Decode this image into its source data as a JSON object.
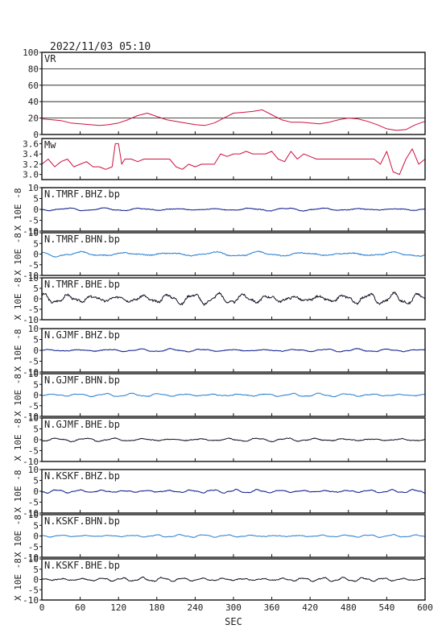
{
  "header": {
    "timestamp": "2022/11/03 05:10"
  },
  "chart_data": {
    "type": "line",
    "xlabel": "SEC",
    "xlim": [
      0,
      600
    ],
    "xticks": [
      0,
      60,
      120,
      180,
      240,
      300,
      360,
      420,
      480,
      540,
      600
    ],
    "panels": [
      {
        "id": "vr",
        "label": "VR",
        "color": "#d01040",
        "ylim": [
          0,
          100
        ],
        "yticks": [
          0,
          20,
          40,
          60,
          80,
          100
        ],
        "hgrid": true,
        "ylabel": "",
        "series": {
          "x": [
            0,
            15,
            30,
            45,
            60,
            75,
            90,
            105,
            120,
            135,
            150,
            165,
            180,
            195,
            210,
            225,
            240,
            255,
            270,
            285,
            300,
            315,
            330,
            345,
            360,
            375,
            390,
            405,
            420,
            435,
            450,
            465,
            480,
            495,
            510,
            525,
            540,
            555,
            570,
            585,
            600
          ],
          "y": [
            19,
            18,
            17,
            14,
            13,
            12,
            11,
            12,
            14,
            18,
            23,
            26,
            22,
            18,
            16,
            14,
            12,
            11,
            14,
            20,
            26,
            27,
            28,
            30,
            24,
            18,
            15,
            15,
            14,
            13,
            15,
            18,
            20,
            19,
            16,
            12,
            7,
            5,
            6,
            12,
            16
          ]
        }
      },
      {
        "id": "mw",
        "label": "Mw",
        "color": "#d01040",
        "ylim": [
          2.9,
          3.7
        ],
        "yticks": [
          3.0,
          3.2,
          3.4,
          3.6
        ],
        "hgrid": false,
        "ylabel": "",
        "series": {
          "x": [
            0,
            10,
            20,
            30,
            40,
            50,
            60,
            70,
            80,
            90,
            100,
            110,
            115,
            120,
            125,
            130,
            140,
            150,
            160,
            170,
            180,
            190,
            200,
            210,
            220,
            230,
            240,
            250,
            260,
            270,
            280,
            290,
            300,
            310,
            320,
            330,
            340,
            350,
            360,
            370,
            380,
            390,
            400,
            410,
            420,
            430,
            440,
            450,
            460,
            470,
            480,
            490,
            500,
            510,
            520,
            530,
            540,
            550,
            560,
            570,
            580,
            590,
            600
          ],
          "y": [
            3.2,
            3.3,
            3.15,
            3.25,
            3.3,
            3.15,
            3.2,
            3.25,
            3.15,
            3.15,
            3.1,
            3.15,
            3.6,
            3.6,
            3.2,
            3.3,
            3.3,
            3.25,
            3.3,
            3.3,
            3.3,
            3.3,
            3.3,
            3.15,
            3.1,
            3.2,
            3.15,
            3.2,
            3.2,
            3.2,
            3.4,
            3.35,
            3.4,
            3.4,
            3.45,
            3.4,
            3.4,
            3.4,
            3.45,
            3.3,
            3.25,
            3.45,
            3.3,
            3.4,
            3.35,
            3.3,
            3.3,
            3.3,
            3.3,
            3.3,
            3.3,
            3.3,
            3.3,
            3.3,
            3.3,
            3.2,
            3.45,
            3.05,
            3.0,
            3.3,
            3.5,
            3.2,
            3.3
          ]
        }
      },
      {
        "id": "tmrf-bhz",
        "label": "N.TMRF.BHZ.bp",
        "color": "#0a1a8c",
        "ylim": [
          -10,
          10
        ],
        "yticks": [
          -10,
          -5,
          0,
          5,
          10
        ],
        "ylabel": "X 10E -8",
        "amp": 0.8,
        "freq": 0.11,
        "seed": 1
      },
      {
        "id": "tmrf-bhn",
        "label": "N.TMRF.BHN.bp",
        "color": "#2a7fd0",
        "ylim": [
          -10,
          10
        ],
        "yticks": [
          -10,
          -5,
          0,
          5,
          10
        ],
        "ylabel": "X 10E -8",
        "amp": 1.3,
        "freq": 0.09,
        "seed": 2
      },
      {
        "id": "tmrf-bhe",
        "label": "N.TMRF.BHE.bp",
        "color": "#111122",
        "ylim": [
          -10,
          10
        ],
        "yticks": [
          -10,
          -5,
          0,
          5,
          10
        ],
        "ylabel": "X 10E -8",
        "amp": 3.0,
        "freq": 0.16,
        "seed": 3
      },
      {
        "id": "gjmf-bhz",
        "label": "N.GJMF.BHZ.bp",
        "color": "#0a1a8c",
        "ylim": [
          -10,
          10
        ],
        "yticks": [
          -10,
          -5,
          0,
          5,
          10
        ],
        "ylabel": "X 10E -8",
        "amp": 0.8,
        "freq": 0.13,
        "seed": 4
      },
      {
        "id": "gjmf-bhn",
        "label": "N.GJMF.BHN.bp",
        "color": "#2a7fd0",
        "ylim": [
          -10,
          10
        ],
        "yticks": [
          -10,
          -5,
          0,
          5,
          10
        ],
        "ylabel": "X 10E -8",
        "amp": 0.9,
        "freq": 0.15,
        "seed": 5
      },
      {
        "id": "gjmf-bhe",
        "label": "N.GJMF.BHE.bp",
        "color": "#111122",
        "ylim": [
          -10,
          10
        ],
        "yticks": [
          -10,
          -5,
          0,
          5,
          10
        ],
        "ylabel": "X 10E -8",
        "amp": 0.9,
        "freq": 0.14,
        "seed": 6
      },
      {
        "id": "kskf-bhz",
        "label": "N.KSKF.BHZ.bp",
        "color": "#0a1a8c",
        "ylim": [
          -10,
          10
        ],
        "yticks": [
          -10,
          -5,
          0,
          5,
          10
        ],
        "ylabel": "X 10E -8",
        "amp": 0.9,
        "freq": 0.18,
        "seed": 7
      },
      {
        "id": "kskf-bhn",
        "label": "N.KSKF.BHN.bp",
        "color": "#2a7fd0",
        "ylim": [
          -10,
          10
        ],
        "yticks": [
          -10,
          -5,
          0,
          5,
          10
        ],
        "ylabel": "X 10E -8",
        "amp": 0.7,
        "freq": 0.17,
        "seed": 8
      },
      {
        "id": "kskf-bhe",
        "label": "N.KSKF.BHE.bp",
        "color": "#111122",
        "ylim": [
          -10,
          10
        ],
        "yticks": [
          -10,
          -5,
          0,
          5,
          10
        ],
        "ylabel": "X 10E -8",
        "amp": 1.1,
        "freq": 0.2,
        "seed": 9
      }
    ]
  }
}
